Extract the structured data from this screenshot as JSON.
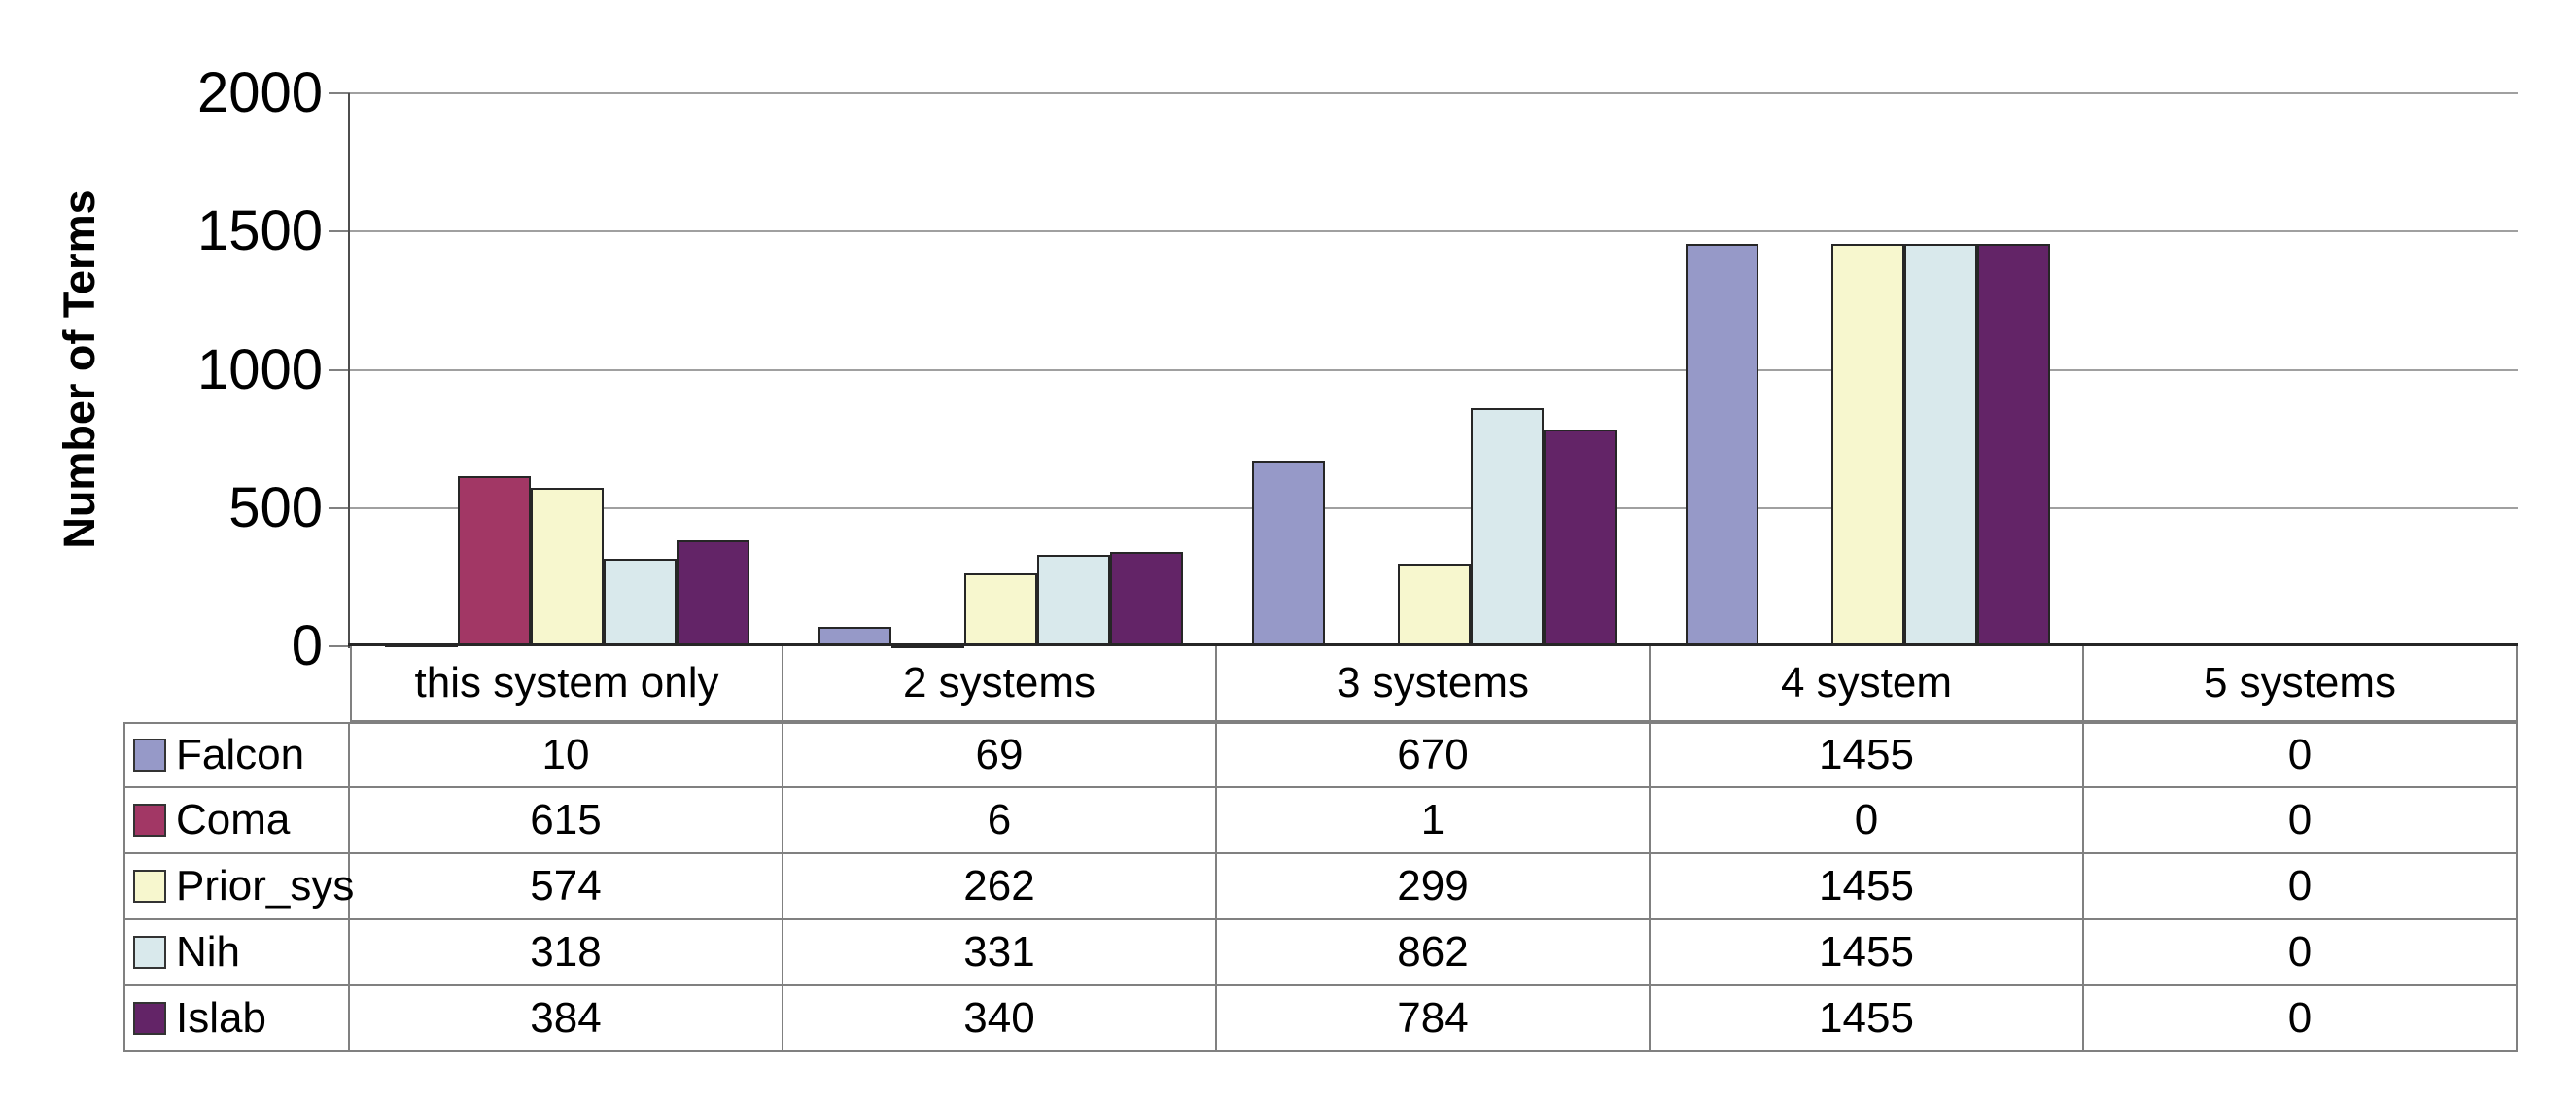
{
  "chart_data": {
    "type": "bar",
    "title": "",
    "xlabel": "",
    "ylabel": "Number of Terms",
    "ylim": [
      0,
      2000
    ],
    "yticks": [
      0,
      500,
      1000,
      1500,
      2000
    ],
    "grid": true,
    "legend_position": "left-of-data-table-rows",
    "categories": [
      "this system only",
      "2 systems",
      "3 systems",
      "4 system",
      "5 systems"
    ],
    "series": [
      {
        "name": "Falcon",
        "color": "#9699C8",
        "values": [
          10,
          69,
          670,
          1455,
          0
        ]
      },
      {
        "name": "Coma",
        "color": "#A23765",
        "values": [
          615,
          6,
          1,
          0,
          0
        ]
      },
      {
        "name": "Prior_sys",
        "color": "#F7F7CE",
        "values": [
          574,
          262,
          299,
          1455,
          0
        ]
      },
      {
        "name": "Nih",
        "color": "#D9E9EC",
        "values": [
          318,
          331,
          862,
          1455,
          0
        ]
      },
      {
        "name": "Islab",
        "color": "#632467",
        "values": [
          384,
          340,
          784,
          1455,
          0
        ]
      }
    ]
  },
  "colors": {
    "background": "#FFFFFF",
    "gridline": "#A0A0A0",
    "y_axis_line": "#4D4D4D",
    "x_axis_line": "#262626",
    "tick_mark": "#808080",
    "table_border": "#808080",
    "bar_border": "#262626",
    "text": "#000000"
  }
}
